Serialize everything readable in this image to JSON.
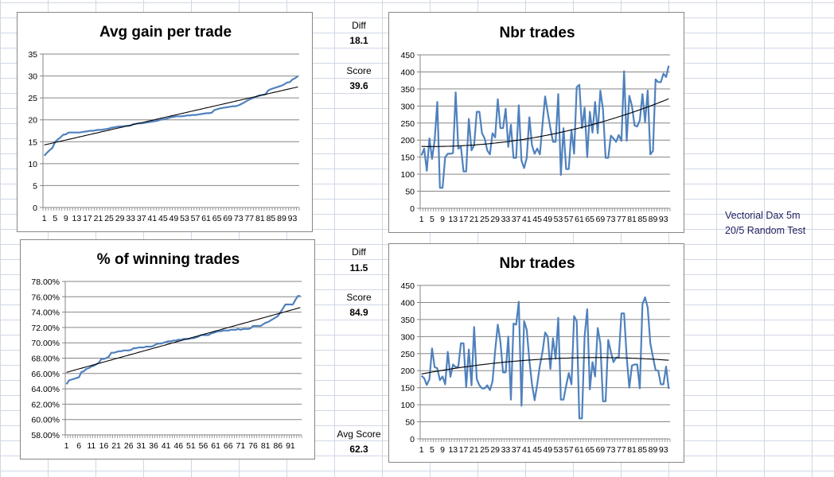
{
  "stats": {
    "top": {
      "diff_label": "Diff",
      "diff_value": "18.1",
      "score_label": "Score",
      "score_value": "39.6"
    },
    "bottom": {
      "diff_label": "Diff",
      "diff_value": "11.5",
      "score_label": "Score",
      "score_value": "84.9"
    },
    "avg_score_label": "Avg Score",
    "avg_score_value": "62.3"
  },
  "note": {
    "line1": "Vectorial Dax 5m",
    "line2": "20/5 Random Test"
  },
  "colors": {
    "series": "#4f81bd",
    "trend": "#000000",
    "grid": "#868686"
  },
  "chart_data": [
    {
      "id": "avg-gain",
      "type": "line",
      "title": "Avg gain per trade",
      "xlabel": "",
      "ylabel": "",
      "ylim": [
        0,
        35
      ],
      "ystep": 5,
      "yformat": "int",
      "xtick_every": 4,
      "trendline": "linear",
      "grid": true,
      "values": [
        11.8,
        12.5,
        13.1,
        13.6,
        15.0,
        15.5,
        16.0,
        16.6,
        16.7,
        17.1,
        17.1,
        17.1,
        17.1,
        17.1,
        17.2,
        17.3,
        17.4,
        17.5,
        17.5,
        17.6,
        17.7,
        17.7,
        17.8,
        17.9,
        18.0,
        18.2,
        18.3,
        18.4,
        18.5,
        18.5,
        18.6,
        18.6,
        18.7,
        19.0,
        19.1,
        19.2,
        19.2,
        19.3,
        19.4,
        19.5,
        19.6,
        19.7,
        19.8,
        20.0,
        20.1,
        20.2,
        20.4,
        20.6,
        20.7,
        20.8,
        20.8,
        20.8,
        20.9,
        21.0,
        21.0,
        21.1,
        21.1,
        21.2,
        21.3,
        21.4,
        21.5,
        21.5,
        21.6,
        22.2,
        22.4,
        22.6,
        22.7,
        22.8,
        22.9,
        23.0,
        23.1,
        23.1,
        23.3,
        23.6,
        23.9,
        24.3,
        24.6,
        24.9,
        25.1,
        25.4,
        25.6,
        25.7,
        25.8,
        26.7,
        27.0,
        27.2,
        27.4,
        27.6,
        27.8,
        28.1,
        28.5,
        28.6,
        29.2,
        29.5,
        30.0
      ]
    },
    {
      "id": "nbr-trades-top",
      "type": "line",
      "title": "Nbr trades",
      "xlabel": "",
      "ylabel": "",
      "ylim": [
        0,
        450
      ],
      "ystep": 50,
      "yformat": "int",
      "xtick_every": 4,
      "trendline": "polynomial-2",
      "grid": true,
      "values": [
        155,
        175,
        110,
        205,
        145,
        200,
        312,
        60,
        60,
        150,
        160,
        160,
        162,
        340,
        175,
        180,
        108,
        108,
        262,
        170,
        185,
        283,
        283,
        220,
        205,
        170,
        158,
        220,
        208,
        320,
        235,
        235,
        292,
        180,
        245,
        148,
        148,
        302,
        140,
        118,
        148,
        267,
        185,
        160,
        175,
        158,
        245,
        328,
        280,
        235,
        195,
        195,
        335,
        98,
        235,
        115,
        115,
        230,
        160,
        355,
        362,
        235,
        295,
        150,
        283,
        222,
        312,
        220,
        345,
        290,
        148,
        148,
        213,
        205,
        195,
        215,
        198,
        402,
        198,
        330,
        300,
        243,
        240,
        258,
        335,
        253,
        345,
        158,
        168,
        378,
        370,
        370,
        395,
        385,
        418
      ]
    },
    {
      "id": "winning-trades",
      "type": "line",
      "title": "% of winning trades",
      "xlabel": "",
      "ylabel": "",
      "ylim": [
        58,
        78
      ],
      "ystep": 2,
      "yformat": "percent",
      "xtick_every": 5,
      "trendline": "linear",
      "grid": true,
      "values": [
        64.6,
        65.1,
        65.2,
        65.3,
        65.4,
        65.5,
        66.2,
        66.3,
        66.6,
        66.7,
        66.9,
        67.0,
        67.2,
        67.4,
        67.9,
        67.9,
        68.0,
        68.2,
        68.7,
        68.7,
        68.8,
        68.9,
        68.9,
        69.0,
        69.0,
        69.0,
        69.1,
        69.3,
        69.3,
        69.4,
        69.4,
        69.4,
        69.5,
        69.5,
        69.5,
        69.6,
        69.8,
        69.9,
        69.9,
        70.0,
        70.1,
        70.2,
        70.2,
        70.3,
        70.3,
        70.4,
        70.4,
        70.5,
        70.5,
        70.5,
        70.6,
        70.6,
        70.7,
        70.8,
        71.0,
        71.0,
        71.0,
        71.0,
        71.2,
        71.3,
        71.4,
        71.5,
        71.5,
        71.6,
        71.6,
        71.6,
        71.7,
        71.7,
        71.7,
        71.8,
        71.7,
        71.8,
        71.8,
        71.8,
        71.9,
        72.2,
        72.2,
        72.2,
        72.2,
        72.4,
        72.6,
        72.7,
        72.9,
        73.1,
        73.3,
        73.5,
        74.0,
        74.5,
        75.0,
        75.0,
        75.0,
        75.0,
        75.6,
        76.1,
        76.1
      ]
    },
    {
      "id": "nbr-trades-bottom",
      "type": "line",
      "title": "Nbr trades",
      "xlabel": "",
      "ylabel": "",
      "ylim": [
        0,
        450
      ],
      "ystep": 50,
      "yformat": "int",
      "xtick_every": 4,
      "trendline": "polynomial-2",
      "grid": true,
      "values": [
        185,
        178,
        158,
        175,
        265,
        210,
        207,
        172,
        183,
        160,
        255,
        182,
        218,
        210,
        212,
        280,
        280,
        152,
        262,
        157,
        328,
        175,
        157,
        148,
        148,
        157,
        143,
        168,
        258,
        335,
        285,
        195,
        195,
        300,
        115,
        338,
        335,
        402,
        97,
        345,
        320,
        230,
        160,
        113,
        160,
        215,
        255,
        312,
        300,
        205,
        295,
        235,
        355,
        115,
        115,
        155,
        193,
        160,
        360,
        345,
        60,
        60,
        300,
        380,
        145,
        225,
        183,
        325,
        280,
        110,
        110,
        290,
        255,
        225,
        238,
        238,
        368,
        368,
        240,
        150,
        215,
        218,
        218,
        148,
        395,
        415,
        385,
        280,
        240,
        202,
        200,
        160,
        160,
        212,
        147
      ]
    }
  ]
}
